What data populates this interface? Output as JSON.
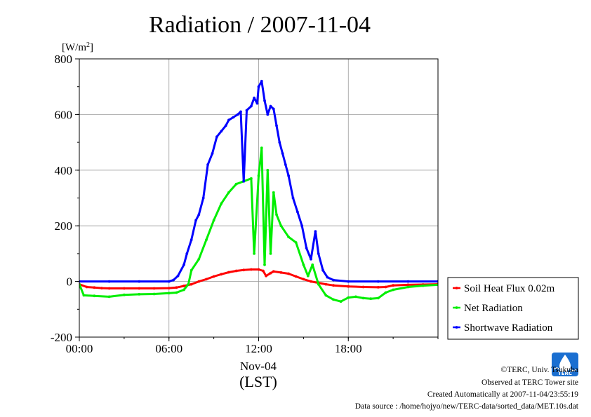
{
  "chart_data": {
    "type": "line",
    "title": "Radiation / 2007-11-04",
    "y_unit": "[W/m",
    "y_unit_sup": "2",
    "y_unit_close": "]",
    "ylim": [
      -200,
      800
    ],
    "yticks": [
      -200,
      0,
      200,
      400,
      600,
      800
    ],
    "ytick_labels": [
      "-200",
      "0",
      "200",
      "400",
      "600",
      "800"
    ],
    "xlim": [
      0,
      24
    ],
    "xticks": [
      0,
      6,
      12,
      18
    ],
    "xtick_labels": [
      "00:00",
      "06:00",
      "12:00",
      "18:00"
    ],
    "x_sublabel": "Nov-04",
    "xlabel": "(LST)",
    "grid": true,
    "legend_position": "right",
    "series": [
      {
        "name": "Soil Heat Flux 0.02m",
        "color": "#ff0000",
        "x": [
          0,
          0.5,
          1,
          1.5,
          2,
          3,
          4,
          5,
          6,
          6.5,
          7,
          7.5,
          8,
          8.5,
          9,
          9.5,
          10,
          10.5,
          11,
          11.5,
          12,
          12.3,
          12.5,
          12.8,
          13,
          13.5,
          14,
          14.5,
          15,
          15.5,
          16,
          16.5,
          17,
          18,
          19,
          20,
          20.5,
          21,
          22,
          23,
          24
        ],
        "y": [
          -10,
          -20,
          -22,
          -24,
          -25,
          -25,
          -25,
          -25,
          -24,
          -22,
          -16,
          -10,
          0,
          8,
          18,
          26,
          33,
          38,
          41,
          43,
          43,
          38,
          20,
          30,
          36,
          32,
          28,
          18,
          8,
          0,
          -5,
          -10,
          -14,
          -18,
          -20,
          -21,
          -20,
          -14,
          -12,
          -11,
          -10
        ]
      },
      {
        "name": "Net Radiation",
        "color": "#00ee00",
        "x": [
          0,
          0.3,
          1,
          2,
          3,
          4,
          5,
          6,
          6.5,
          7,
          7.3,
          7.5,
          8,
          8.5,
          9,
          9.5,
          10,
          10.5,
          11,
          11.5,
          11.7,
          12,
          12.2,
          12.4,
          12.6,
          12.8,
          13,
          13.2,
          13.5,
          14,
          14.5,
          15,
          15.3,
          15.6,
          16,
          16.5,
          17,
          17.5,
          18,
          18.5,
          19,
          19.5,
          20,
          20.5,
          21,
          22,
          23,
          24
        ],
        "y": [
          -10,
          -50,
          -52,
          -55,
          -48,
          -46,
          -45,
          -42,
          -40,
          -30,
          -10,
          40,
          80,
          150,
          220,
          280,
          320,
          350,
          360,
          370,
          100,
          380,
          480,
          60,
          400,
          100,
          320,
          240,
          200,
          160,
          140,
          60,
          20,
          60,
          -10,
          -50,
          -65,
          -72,
          -58,
          -55,
          -60,
          -62,
          -60,
          -40,
          -30,
          -20,
          -15,
          -12
        ]
      },
      {
        "name": "Shortwave Radiation",
        "color": "#0000ff",
        "x": [
          0,
          2,
          4,
          6,
          6.3,
          6.6,
          7,
          7.2,
          7.5,
          7.8,
          8,
          8.3,
          8.6,
          8.9,
          9.2,
          9.5,
          9.8,
          10,
          10.3,
          10.6,
          10.8,
          11,
          11.2,
          11.5,
          11.7,
          11.9,
          12.0,
          12.2,
          12.4,
          12.6,
          12.8,
          13,
          13.2,
          13.4,
          13.6,
          13.8,
          14,
          14.3,
          14.6,
          14.9,
          15.2,
          15.5,
          15.8,
          16.0,
          16.3,
          16.6,
          17,
          18,
          20,
          22,
          24
        ],
        "y": [
          0,
          0,
          0,
          0,
          5,
          20,
          60,
          100,
          150,
          220,
          240,
          300,
          420,
          460,
          520,
          540,
          560,
          580,
          590,
          600,
          610,
          360,
          615,
          630,
          660,
          640,
          700,
          720,
          650,
          600,
          630,
          620,
          560,
          500,
          460,
          420,
          380,
          300,
          250,
          200,
          120,
          80,
          180,
          100,
          40,
          15,
          5,
          0,
          0,
          0,
          0
        ]
      }
    ]
  },
  "footer": {
    "copyright": "©TERC, Univ. Tsukuba",
    "observed": "Observed at TERC Tower site",
    "created": "Created Automatically at 2007-11-04/23:55:19",
    "source": "Data source : /home/hojyo/new/TERC-data/sorted_data/MET.10s.dat"
  },
  "logo": {
    "text": "TERC",
    "icon": "terc-logo-icon",
    "color": "#1a6fd1"
  }
}
